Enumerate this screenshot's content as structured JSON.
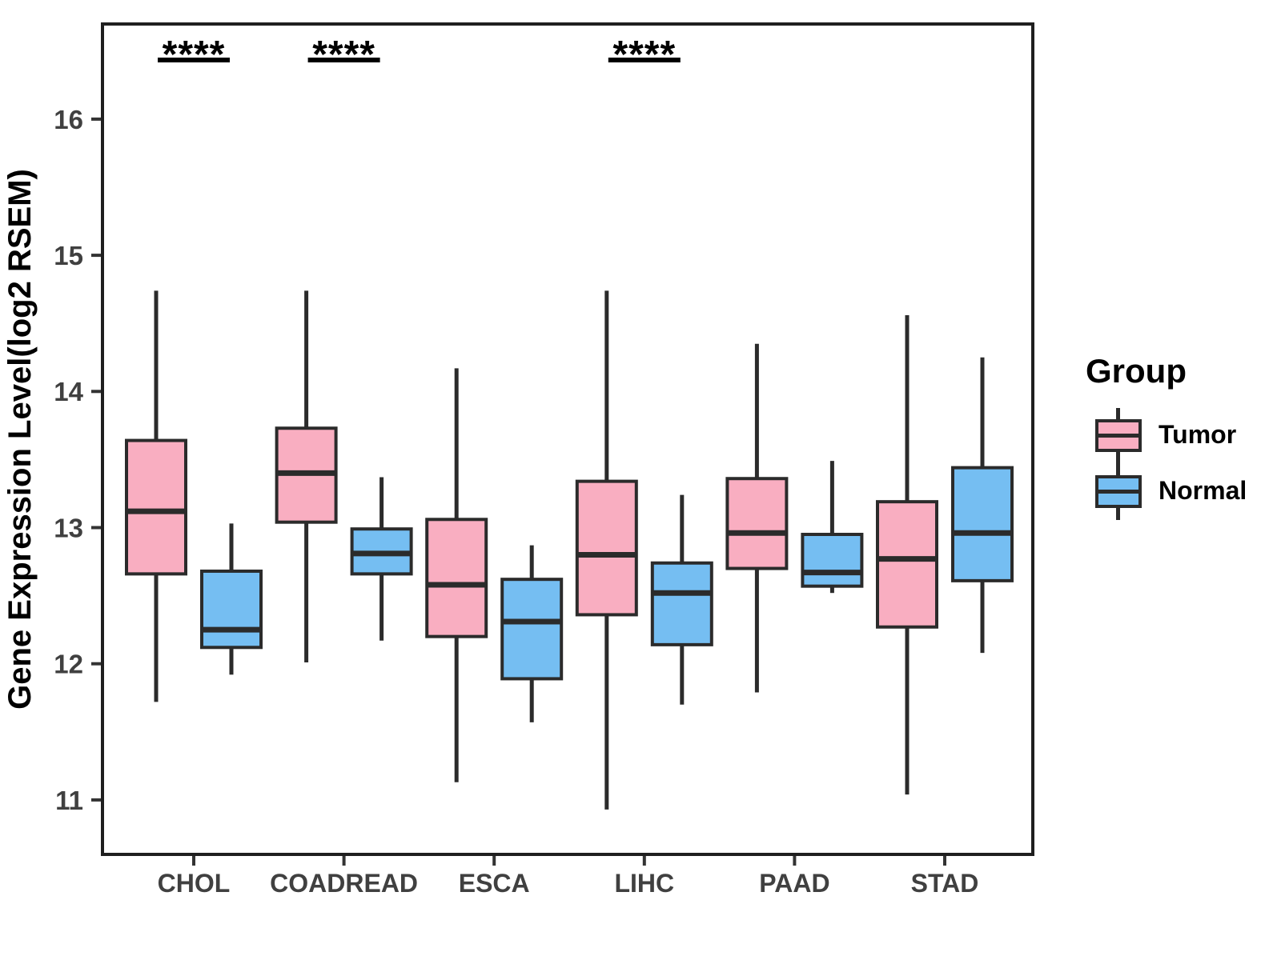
{
  "chart_data": {
    "type": "boxplot",
    "title": "",
    "xlabel": "",
    "ylabel": "Gene Expression Level(log2 RSEM)",
    "categories": [
      "CHOL",
      "COADREAD",
      "ESCA",
      "LIHC",
      "PAAD",
      "STAD"
    ],
    "y_ticks": [
      11,
      12,
      13,
      14,
      15,
      16
    ],
    "ylim": [
      10.6,
      16.72
    ],
    "grid": "off",
    "legend_position": "right",
    "legend": {
      "title": "Group",
      "entries": [
        {
          "label": "Tumor",
          "color": "#F9AEC1"
        },
        {
          "label": "Normal",
          "color": "#75BEF2"
        }
      ]
    },
    "significance": [
      {
        "category": "CHOL",
        "label": "****"
      },
      {
        "category": "COADREAD",
        "label": "****"
      },
      {
        "category": "LIHC",
        "label": "****"
      }
    ],
    "series": [
      {
        "name": "Tumor",
        "color": "#F9AEC1",
        "boxes": [
          {
            "category": "CHOL",
            "min": 11.72,
            "q1": 12.66,
            "median": 13.12,
            "q3": 13.64,
            "max": 14.74
          },
          {
            "category": "COADREAD",
            "min": 12.01,
            "q1": 13.04,
            "median": 13.4,
            "q3": 13.73,
            "max": 14.74
          },
          {
            "category": "ESCA",
            "min": 11.13,
            "q1": 12.2,
            "median": 12.58,
            "q3": 13.06,
            "max": 14.17
          },
          {
            "category": "LIHC",
            "min": 10.93,
            "q1": 12.36,
            "median": 12.8,
            "q3": 13.34,
            "max": 14.74
          },
          {
            "category": "PAAD",
            "min": 11.79,
            "q1": 12.7,
            "median": 12.96,
            "q3": 13.36,
            "max": 14.35
          },
          {
            "category": "STAD",
            "min": 11.04,
            "q1": 12.27,
            "median": 12.77,
            "q3": 13.19,
            "max": 14.56
          }
        ]
      },
      {
        "name": "Normal",
        "color": "#75BEF2",
        "boxes": [
          {
            "category": "CHOL",
            "min": 11.92,
            "q1": 12.12,
            "median": 12.25,
            "q3": 12.68,
            "max": 13.03
          },
          {
            "category": "COADREAD",
            "min": 12.17,
            "q1": 12.66,
            "median": 12.81,
            "q3": 12.99,
            "max": 13.37
          },
          {
            "category": "ESCA",
            "min": 11.57,
            "q1": 11.89,
            "median": 12.31,
            "q3": 12.62,
            "max": 12.87
          },
          {
            "category": "LIHC",
            "min": 11.7,
            "q1": 12.14,
            "median": 12.52,
            "q3": 12.74,
            "max": 13.24
          },
          {
            "category": "PAAD",
            "min": 12.52,
            "q1": 12.57,
            "median": 12.67,
            "q3": 12.95,
            "max": 13.49
          },
          {
            "category": "STAD",
            "min": 12.08,
            "q1": 12.61,
            "median": 12.96,
            "q3": 13.44,
            "max": 14.25
          }
        ]
      }
    ],
    "colors": {
      "box_stroke": "#2b2b2b",
      "panel_border": "#1f1f1f",
      "tick_mark": "#333333",
      "tick_label": "#404040",
      "axis_title": "#000000",
      "significance_mark": "#000000",
      "background": "#ffffff"
    }
  }
}
